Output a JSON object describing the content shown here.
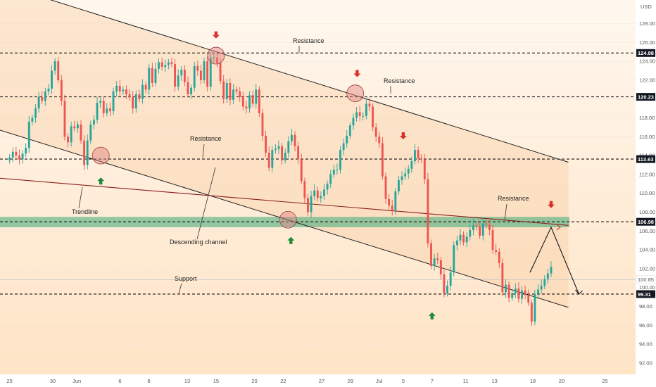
{
  "chart_data": {
    "type": "candlestick",
    "currency_label": "USD",
    "y_range": [
      90.8,
      130.5
    ],
    "x_range": [
      -1,
      65.2
    ],
    "y_ticks": [
      "128.00",
      "126.00",
      "124.00",
      "122.00",
      "120.00",
      "118.00",
      "116.00",
      "114.00",
      "112.00",
      "110.00",
      "108.00",
      "106.00",
      "104.00",
      "102.00",
      "100.00",
      "98.00",
      "96.00",
      "94.00",
      "92.00"
    ],
    "x_ticks": [
      {
        "label": "25",
        "index": 0
      },
      {
        "label": "30",
        "index": 4.5
      },
      {
        "label": "Jun",
        "index": 7
      },
      {
        "label": "6",
        "index": 11.5
      },
      {
        "label": "8",
        "index": 14.5
      },
      {
        "label": "13",
        "index": 18.5
      },
      {
        "label": "15",
        "index": 21.5
      },
      {
        "label": "20",
        "index": 25.5
      },
      {
        "label": "22",
        "index": 28.5
      },
      {
        "label": "27",
        "index": 32.5
      },
      {
        "label": "29",
        "index": 35.5
      },
      {
        "label": "Jul",
        "index": 38.5
      },
      {
        "label": "5",
        "index": 41
      },
      {
        "label": "7",
        "index": 44
      },
      {
        "label": "11",
        "index": 47.5
      },
      {
        "label": "13",
        "index": 50.5
      },
      {
        "label": "18",
        "index": 54.5
      },
      {
        "label": "20",
        "index": 57.5
      },
      {
        "label": "25",
        "index": 62
      }
    ],
    "price_tags": [
      {
        "label": "124.88",
        "value": 124.88
      },
      {
        "label": "120.23",
        "value": 120.23
      },
      {
        "label": "113.63",
        "value": 113.63
      },
      {
        "label": "106.98",
        "value": 106.98
      },
      {
        "label": "100.85",
        "value": 100.85
      },
      {
        "label": "99.31",
        "value": 99.31
      }
    ],
    "horizontal_levels": [
      124.88,
      120.23,
      113.63,
      106.98,
      99.31
    ],
    "zone": {
      "y_low": 106.4,
      "y_high": 107.5
    },
    "candles_close": [
      113.8,
      114.4,
      114.0,
      113.6,
      114.2,
      114.8,
      117.6,
      118.0,
      119.0,
      120.2,
      119.8,
      120.8,
      121.1,
      123.0,
      124.0,
      122.0,
      119.8,
      116.0,
      115.4,
      117.1,
      116.9,
      117.3,
      115.6,
      113.0,
      115.6,
      117.3,
      117.8,
      119.6,
      119.8,
      118.5,
      119.0,
      118.7,
      120.8,
      121.4,
      120.8,
      121.0,
      120.5,
      120.2,
      119.0,
      120.5,
      120.0,
      121.5,
      121.0,
      123.3,
      121.7,
      123.2,
      123.9,
      123.4,
      123.6,
      123.9,
      123.7,
      121.3,
      122.5,
      123.1,
      121.8,
      120.5,
      121.2,
      123.5,
      123.0,
      122.0,
      124.0,
      121.3,
      124.4,
      124.4,
      123.8,
      121.9,
      120.0,
      121.7,
      119.9,
      121.0,
      120.8,
      120.2,
      119.2,
      119.0,
      120.4,
      119.5,
      121.0,
      118.5,
      116.1,
      114.3,
      112.7,
      114.6,
      114.7,
      115.0,
      113.5,
      114.3,
      115.5,
      116.2,
      115.0,
      113.6,
      111.3,
      109.5,
      108.0,
      109.7,
      110.3,
      109.5,
      109.7,
      110.4,
      111.0,
      112.0,
      112.5,
      112.5,
      114.6,
      115.3,
      116.1,
      117.2,
      118.0,
      118.6,
      118.2,
      118.2,
      119.5,
      119.2,
      117.0,
      116.0,
      115.3,
      111.8,
      109.4,
      108.7,
      108.2,
      110.2,
      111.4,
      111.8,
      112.1,
      112.6,
      113.4,
      114.6,
      113.7,
      113.6,
      111.5,
      104.7,
      102.3,
      103.1,
      102.9,
      101.4,
      99.4,
      100.2,
      101.6,
      104.5,
      105.0,
      105.6,
      104.8,
      105.4,
      106.1,
      106.6,
      106.5,
      105.5,
      106.8,
      106.7,
      106.1,
      104.0,
      103.8,
      102.6,
      99.5,
      100.3,
      98.9,
      99.4,
      99.9,
      98.8,
      99.7,
      99.2,
      98.4,
      96.4,
      99.3,
      99.8,
      100.2,
      100.9,
      101.5,
      102.2
    ],
    "forecast_path": [
      {
        "x": 56.4,
        "y": 106.4
      },
      {
        "x": 59.3,
        "y": 99.3
      }
    ],
    "annotations": [
      "Resistance",
      "Resistance",
      "Resistance",
      "Resistance",
      "Trendline",
      "Descending channel",
      "Support"
    ]
  },
  "colors": {
    "up": "#26a69a",
    "down": "#ef5350",
    "zone": "#3aa978",
    "trendline": "#8b1e1e",
    "channel": "#222222",
    "arrow_up": "#1e8a3a",
    "arrow_down": "#d9302c",
    "tag_bg": "#131722",
    "current_tag_bg": "#ffffff"
  }
}
